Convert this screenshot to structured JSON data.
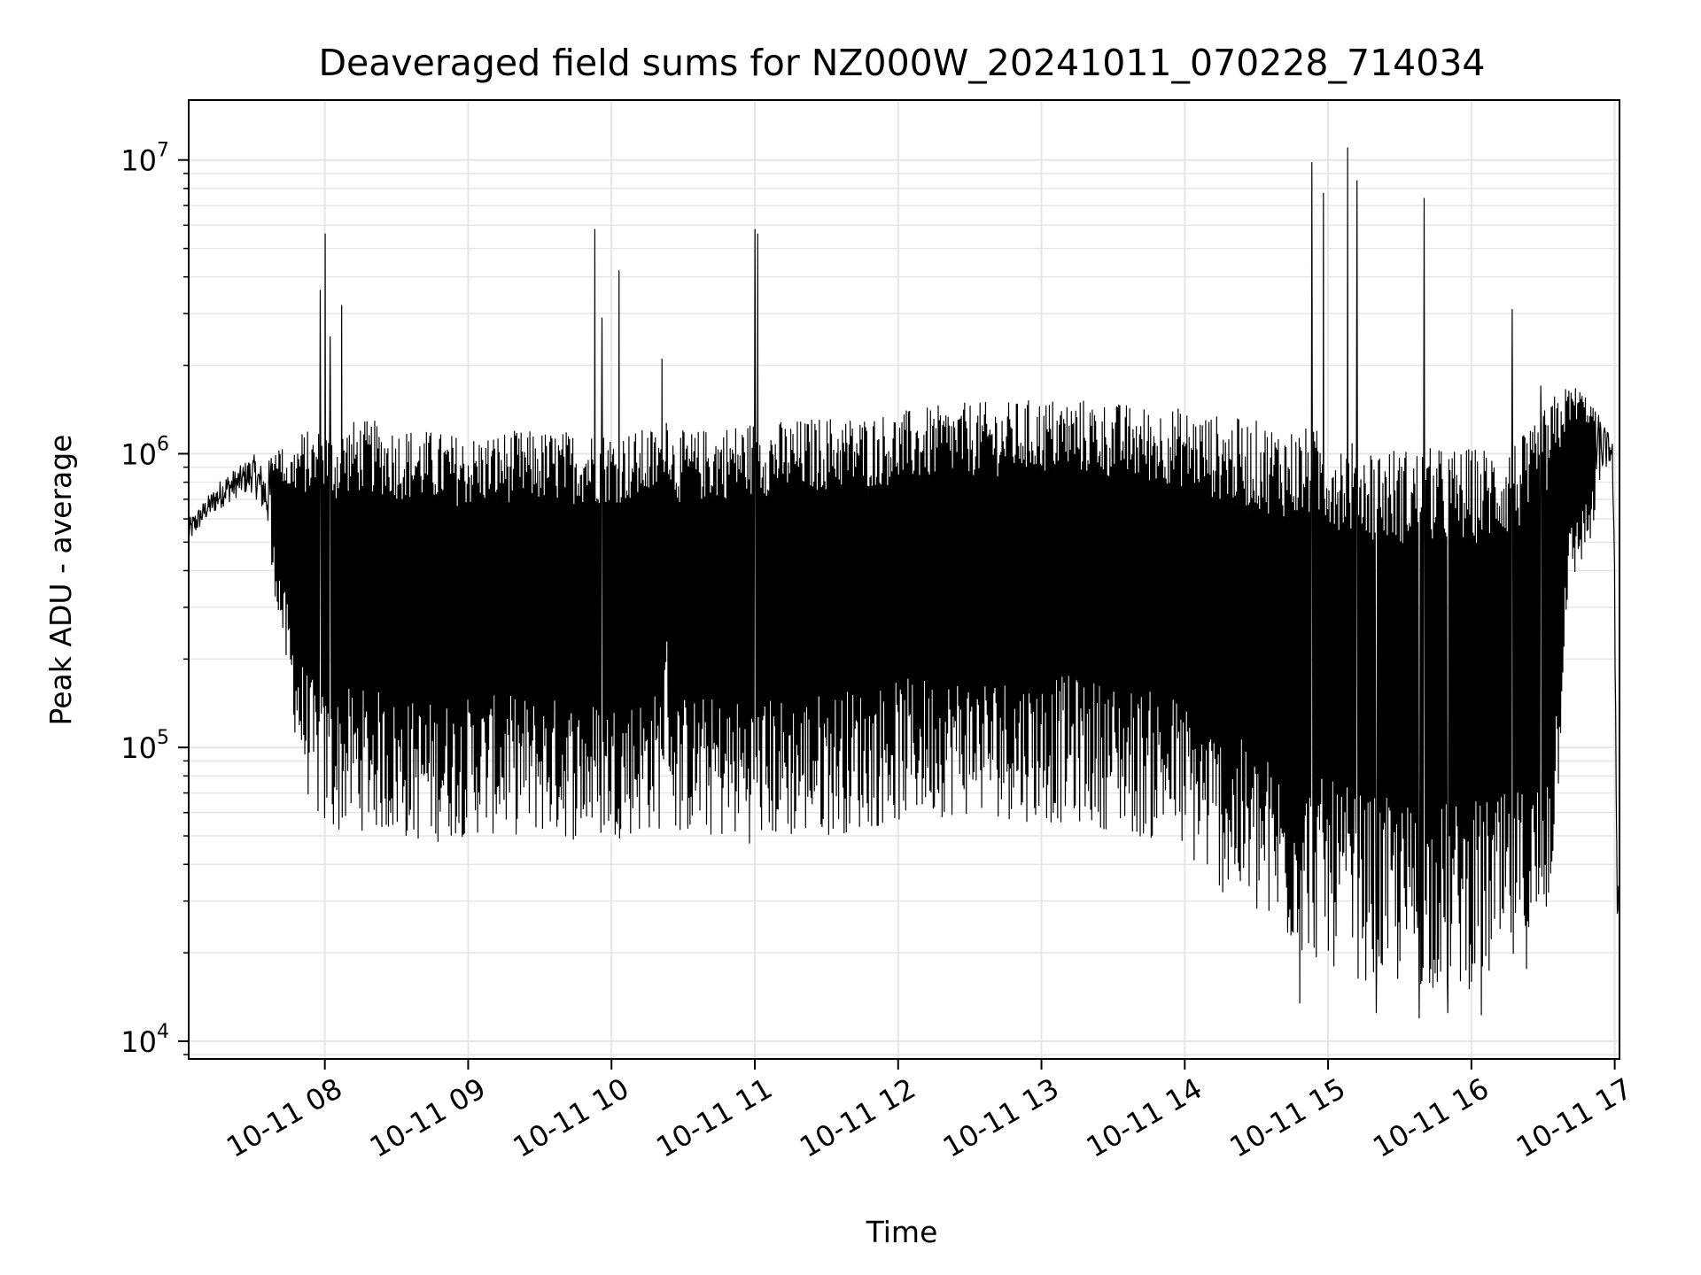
{
  "chart_data": {
    "type": "line",
    "title": "Deaveraged field sums for NZ000W_20241011_070228_714034",
    "xlabel": "Time",
    "ylabel": "Peak ADU - average",
    "yscale": "log",
    "grid": true,
    "line_color": "#000000",
    "grid_color": "#e6e6e6",
    "xlim": [
      "2024-10-11 07:03",
      "2024-10-11 17:02"
    ],
    "ylim": [
      8700,
      16000000
    ],
    "x_ticks": [
      {
        "value": "2024-10-11 08:00",
        "label": "10-11 08"
      },
      {
        "value": "2024-10-11 09:00",
        "label": "10-11 09"
      },
      {
        "value": "2024-10-11 10:00",
        "label": "10-11 10"
      },
      {
        "value": "2024-10-11 11:00",
        "label": "10-11 11"
      },
      {
        "value": "2024-10-11 12:00",
        "label": "10-11 12"
      },
      {
        "value": "2024-10-11 13:00",
        "label": "10-11 13"
      },
      {
        "value": "2024-10-11 14:00",
        "label": "10-11 14"
      },
      {
        "value": "2024-10-11 15:00",
        "label": "10-11 15"
      },
      {
        "value": "2024-10-11 16:00",
        "label": "10-11 16"
      },
      {
        "value": "2024-10-11 17:00",
        "label": "10-11 17"
      }
    ],
    "y_ticks": [
      {
        "value": 10000,
        "base": "10",
        "exp": "4"
      },
      {
        "value": 100000,
        "base": "10",
        "exp": "5"
      },
      {
        "value": 1000000,
        "base": "10",
        "exp": "6"
      },
      {
        "value": 10000000,
        "base": "10",
        "exp": "7"
      }
    ],
    "series": [
      {
        "values_note_source": "envelope",
        "x": [
          "2024-10-11 07:03",
          "2024-10-11 07:10",
          "2024-10-11 07:18",
          "2024-10-11 07:24",
          "2024-10-11 07:30",
          "2024-10-11 07:35",
          "2024-10-11 07:40",
          "2024-10-11 07:45",
          "2024-10-11 07:50",
          "2024-10-11 07:55",
          "2024-10-11 08:00",
          "2024-10-11 08:05",
          "2024-10-11 08:10",
          "2024-10-11 08:20",
          "2024-10-11 08:30",
          "2024-10-11 08:45",
          "2024-10-11 09:00",
          "2024-10-11 09:15",
          "2024-10-11 09:30",
          "2024-10-11 09:45",
          "2024-10-11 09:55",
          "2024-10-11 10:10",
          "2024-10-11 10:20",
          "2024-10-11 10:23",
          "2024-10-11 10:26",
          "2024-10-11 10:35",
          "2024-10-11 10:45",
          "2024-10-11 11:00",
          "2024-10-11 11:15",
          "2024-10-11 11:30",
          "2024-10-11 11:45",
          "2024-10-11 12:00",
          "2024-10-11 12:15",
          "2024-10-11 12:30",
          "2024-10-11 12:45",
          "2024-10-11 13:00",
          "2024-10-11 13:15",
          "2024-10-11 13:30",
          "2024-10-11 13:45",
          "2024-10-11 13:55",
          "2024-10-11 14:05",
          "2024-10-11 14:15",
          "2024-10-11 14:30",
          "2024-10-11 14:45",
          "2024-10-11 15:00",
          "2024-10-11 15:15",
          "2024-10-11 15:30",
          "2024-10-11 15:45",
          "2024-10-11 16:00",
          "2024-10-11 16:15",
          "2024-10-11 16:25",
          "2024-10-11 16:30",
          "2024-10-11 16:35",
          "2024-10-11 16:40",
          "2024-10-11 16:45",
          "2024-10-11 16:50",
          "2024-10-11 16:55",
          "2024-10-11 16:59",
          "2024-10-11 17:00",
          "2024-10-11 17:01",
          "2024-10-11 17:02"
        ],
        "upper": [
          600000,
          700000,
          850000,
          900000,
          1000000,
          900000,
          1100000,
          1000000,
          1200000,
          1200000,
          1250000,
          1200000,
          1300000,
          1300000,
          1250000,
          1200000,
          1150000,
          1200000,
          1200000,
          1200000,
          1200000,
          1200000,
          1250000,
          1500000,
          1200000,
          1200000,
          1250000,
          1300000,
          1300000,
          1350000,
          1350000,
          1400000,
          1450000,
          1500000,
          1500000,
          1550000,
          1550000,
          1500000,
          1450000,
          1450000,
          1400000,
          1350000,
          1300000,
          1250000,
          1200000,
          1100000,
          1050000,
          1050000,
          1050000,
          1100000,
          1200000,
          1400000,
          1600000,
          1700000,
          1700000,
          1500000,
          1300000,
          1100000,
          400000,
          40000,
          35000
        ],
        "lower": [
          450000,
          550000,
          600000,
          650000,
          650000,
          500000,
          300000,
          150000,
          80000,
          60000,
          50000,
          50000,
          52000,
          52000,
          48000,
          47000,
          50000,
          50000,
          50000,
          48000,
          48000,
          50000,
          52000,
          100000,
          50000,
          50000,
          48000,
          47000,
          48000,
          50000,
          52000,
          55000,
          58000,
          58000,
          57000,
          55000,
          55000,
          52000,
          48000,
          47000,
          38000,
          32000,
          25000,
          20000,
          18000,
          16000,
          15000,
          15000,
          15000,
          16000,
          18000,
          20000,
          40000,
          300000,
          400000,
          500000,
          700000,
          900000,
          200000,
          22000,
          25000
        ]
      }
    ],
    "spikes": [
      {
        "x": "2024-10-11 07:58",
        "y": 3600000
      },
      {
        "x": "2024-10-11 08:00",
        "y": 5600000
      },
      {
        "x": "2024-10-11 08:02",
        "y": 2500000
      },
      {
        "x": "2024-10-11 08:07",
        "y": 3200000
      },
      {
        "x": "2024-10-11 09:53",
        "y": 5800000
      },
      {
        "x": "2024-10-11 09:56",
        "y": 2900000
      },
      {
        "x": "2024-10-11 10:03",
        "y": 4200000
      },
      {
        "x": "2024-10-11 10:21",
        "y": 2100000
      },
      {
        "x": "2024-10-11 11:00",
        "y": 5800000
      },
      {
        "x": "2024-10-11 11:01",
        "y": 5600000
      },
      {
        "x": "2024-10-11 14:53",
        "y": 9800000
      },
      {
        "x": "2024-10-11 14:58",
        "y": 7700000
      },
      {
        "x": "2024-10-11 15:08",
        "y": 11000000
      },
      {
        "x": "2024-10-11 15:12",
        "y": 8500000
      },
      {
        "x": "2024-10-11 15:40",
        "y": 7400000
      },
      {
        "x": "2024-10-11 16:17",
        "y": 3100000
      },
      {
        "x": "2024-10-11 16:29",
        "y": 1700000
      }
    ],
    "dips": [
      {
        "x": "2024-10-11 14:48",
        "y": 13500
      },
      {
        "x": "2024-10-11 15:20",
        "y": 12500
      },
      {
        "x": "2024-10-11 15:38",
        "y": 12000
      },
      {
        "x": "2024-10-11 15:50",
        "y": 12500
      },
      {
        "x": "2024-10-11 16:04",
        "y": 12300
      }
    ]
  }
}
